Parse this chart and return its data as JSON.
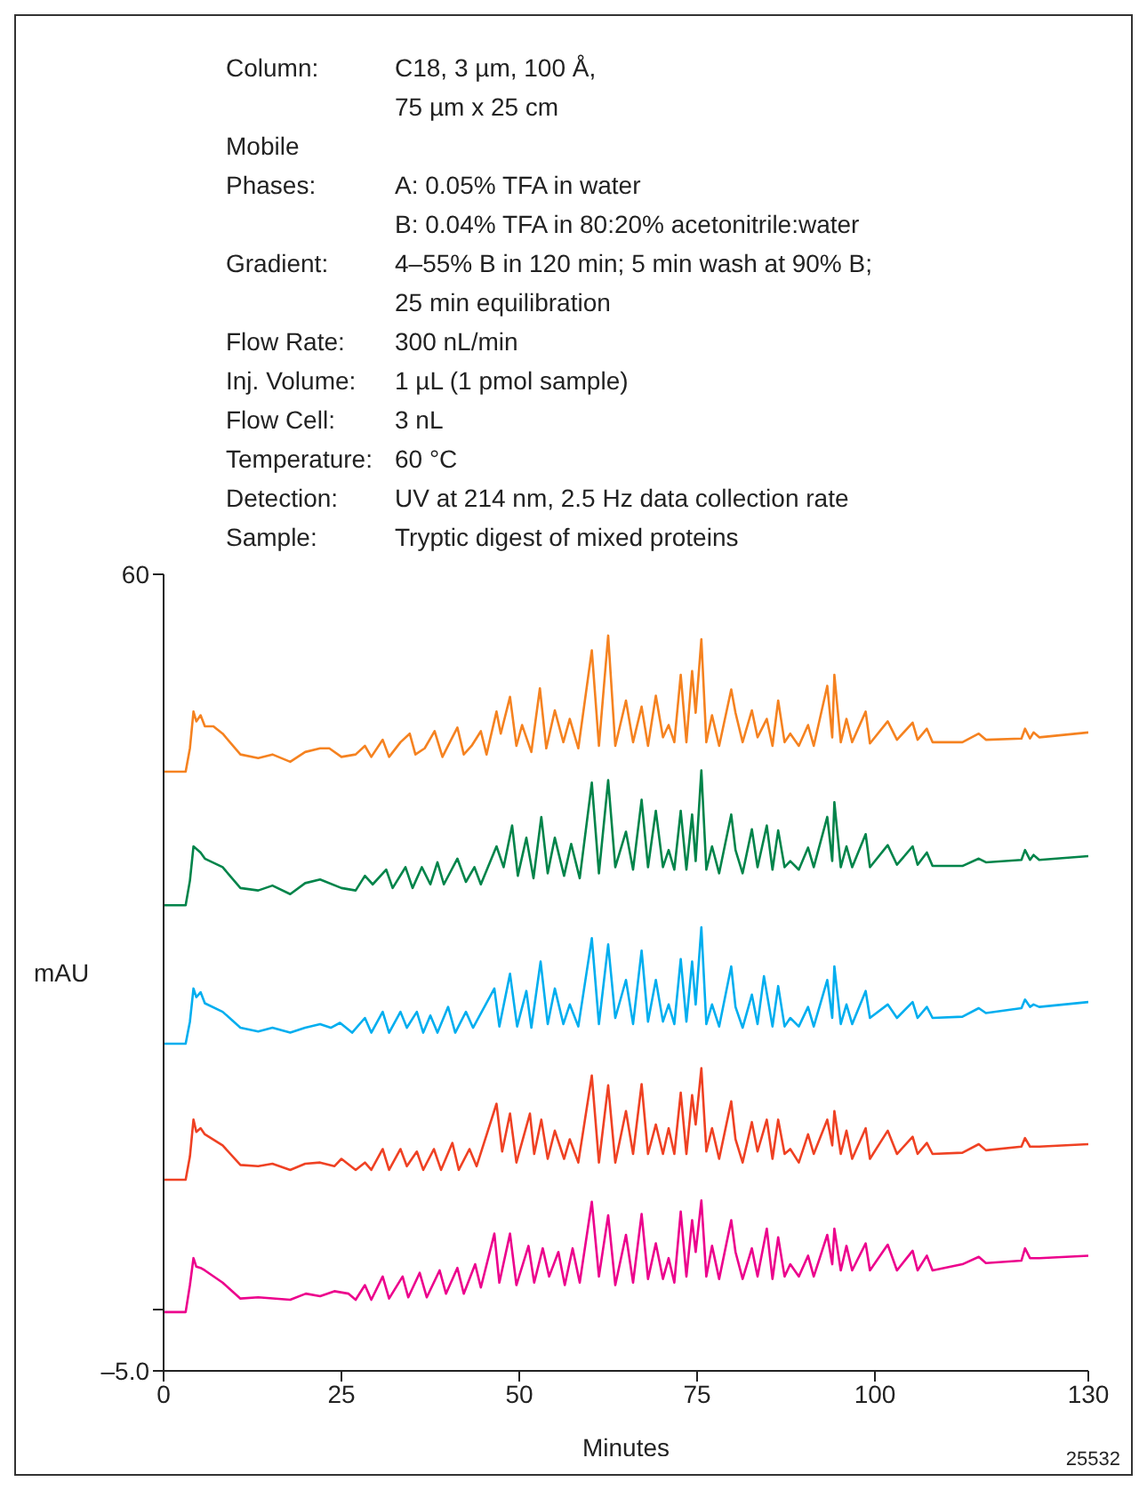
{
  "chart_data": {
    "type": "line",
    "xlabel": "Minutes",
    "ylabel": "mAU",
    "xlim": [
      0,
      130
    ],
    "xticks": [
      0,
      25,
      50,
      75,
      100,
      130
    ],
    "ylim": [
      -5,
      60
    ],
    "yticks": [
      60,
      {
        "value": 0,
        "label": null
      },
      {
        "value": -5,
        "label": "–5.0"
      }
    ],
    "annotations": [
      "Column:",
      "C18, 3 µm, 100 Å,\n75 µm x 25 cm",
      "Mobile\nPhases:",
      "\nA: 0.05% TFA in water\nB: 0.04% TFA in 80:20% acetonitrile:water",
      "Gradient:",
      "4–55% B in 120 min; 5 min wash at 90% B;\n25 min equilibration",
      "Flow Rate:",
      "300 nL/min",
      "Inj. Volume:",
      "1 µL (1 pmol sample)",
      "Flow Cell:",
      "3 nL",
      "Temperature:",
      "60 °C",
      "Detection:",
      "UV at 214 nm, 2.5 Hz data collection rate",
      "Sample:",
      "Tryptic digest of mixed proteins",
      "25532"
    ],
    "series": [
      {
        "color": "#f58220",
        "x": [
          0,
          3.1,
          3.7,
          4.2,
          4.6,
          5.2,
          5.8,
          7.0,
          8.3,
          10.8,
          13.3,
          15.3,
          17.8,
          19.9,
          22,
          23.3,
          25,
          27,
          28.3,
          29.2,
          30.8,
          31.7,
          33.3,
          34.6,
          35.4,
          36.7,
          38.1,
          39.2,
          41.3,
          42.2,
          43.3,
          44.6,
          45.4,
          46.8,
          47.4,
          48.7,
          49.6,
          50.4,
          51.7,
          52.9,
          53.8,
          55.0,
          56.2,
          57.1,
          58.3,
          60.2,
          61.2,
          62.5,
          63.5,
          65,
          66,
          67.2,
          68.1,
          69.2,
          70.2,
          71,
          71.8,
          72.7,
          73.5,
          74.3,
          74.8,
          75.6,
          76.3,
          77.1,
          78.1,
          79.8,
          80.4,
          81.4,
          82.7,
          83.5,
          84.8,
          85.6,
          86.4,
          87.3,
          88.1,
          89.3,
          90.6,
          91.4,
          93.3,
          94.0,
          94.3,
          95.2,
          96.0,
          96.8,
          98.7,
          99.3,
          101.8,
          103.1,
          105.3,
          106,
          107.3,
          108.1,
          112.3,
          114.6,
          115.6,
          120.6,
          121.1,
          121.8,
          122.3,
          123.1,
          130
        ],
        "values": [
          43.9,
          43.9,
          45.8,
          48.8,
          48.0,
          48.5,
          47.6,
          47.6,
          47.0,
          45.3,
          45.0,
          45.3,
          44.7,
          45.5,
          45.8,
          45.8,
          45.1,
          45.3,
          46.0,
          45.1,
          46.5,
          45.1,
          46.3,
          47.0,
          45.3,
          45.8,
          47.2,
          45.1,
          47.5,
          45.3,
          46.0,
          47.2,
          45.3,
          48.8,
          47.0,
          50.0,
          46.0,
          47.7,
          45.5,
          50.7,
          45.8,
          48.9,
          46.3,
          48.2,
          45.8,
          53.8,
          46.0,
          55.0,
          46.0,
          49.7,
          46.3,
          49.2,
          46.0,
          50.1,
          46.7,
          47.7,
          46.3,
          51.8,
          46.3,
          52.1,
          48.7,
          54.7,
          46.3,
          48.5,
          46.0,
          50.6,
          48.7,
          46.3,
          48.9,
          46.7,
          48.2,
          46.0,
          49.7,
          46.3,
          47.0,
          46.0,
          47.7,
          46.0,
          50.9,
          46.7,
          51.8,
          46.3,
          48.2,
          46.3,
          48.8,
          46.2,
          48.0,
          46.5,
          47.9,
          46.5,
          47.4,
          46.3,
          46.3,
          47.0,
          46.5,
          46.6,
          47.4,
          46.6,
          47.1,
          46.7,
          47.1
        ]
      },
      {
        "color": "#00844a",
        "x": [
          0,
          3.1,
          3.7,
          4.2,
          5.2,
          5.8,
          8.3,
          10.8,
          13.3,
          15.3,
          17.8,
          19.9,
          22,
          25,
          27,
          28.3,
          29.4,
          31.3,
          32.2,
          34,
          35,
          36.3,
          37.5,
          38.5,
          39.4,
          41.3,
          42.5,
          43.7,
          44.6,
          46.8,
          47.8,
          49,
          49.8,
          51,
          52,
          53.1,
          54,
          55,
          56.3,
          57.3,
          58.5,
          60.2,
          61.2,
          62.5,
          63.5,
          65,
          66,
          67.2,
          68.1,
          69.2,
          70.2,
          71,
          71.8,
          72.7,
          73.5,
          74.3,
          74.8,
          75.6,
          76.3,
          77.1,
          78.1,
          79.8,
          80.4,
          81.4,
          82.7,
          83.5,
          84.8,
          85.6,
          86.4,
          87.3,
          88.1,
          89.3,
          90.6,
          91.4,
          93.3,
          94,
          94.3,
          95.2,
          96,
          96.8,
          98.7,
          99.3,
          101.8,
          103.1,
          105.3,
          106,
          107.3,
          108.1,
          112.3,
          114.6,
          115.6,
          120.6,
          121.1,
          121.8,
          122.3,
          123.1,
          130
        ],
        "values": [
          33.0,
          33.0,
          35.0,
          37.8,
          37.3,
          36.8,
          36.1,
          34.4,
          34.2,
          34.6,
          33.9,
          34.8,
          35.1,
          34.4,
          34.2,
          35.4,
          34.7,
          35.9,
          34.4,
          36.1,
          34.4,
          36.1,
          34.7,
          36.5,
          34.7,
          36.8,
          34.9,
          36.1,
          34.7,
          37.8,
          36.1,
          39.5,
          35.4,
          38.5,
          35.2,
          40.2,
          35.6,
          38.5,
          35.4,
          38.0,
          35.2,
          43.0,
          35.6,
          43.2,
          36.1,
          39.0,
          35.9,
          41.6,
          36.1,
          40.7,
          36.1,
          37.5,
          35.9,
          40.7,
          35.9,
          40.4,
          36.6,
          44.0,
          35.9,
          37.8,
          35.6,
          40.4,
          37.5,
          35.6,
          39.2,
          36.1,
          39.5,
          35.9,
          39.1,
          36.1,
          36.6,
          35.9,
          37.7,
          36.1,
          40.2,
          36.6,
          41.4,
          36.1,
          37.8,
          36.1,
          38.8,
          36.1,
          37.9,
          36.3,
          37.8,
          36.3,
          37.3,
          36.2,
          36.2,
          36.8,
          36.5,
          36.7,
          37.5,
          36.7,
          37.1,
          36.7,
          37.0
        ]
      },
      {
        "color": "#00aeef",
        "x": [
          0,
          3.1,
          3.7,
          4.2,
          4.6,
          5.2,
          5.8,
          8.3,
          10.8,
          13.3,
          15.3,
          17.8,
          19.9,
          22,
          23.5,
          24.8,
          26.5,
          28.3,
          29.2,
          30.8,
          31.7,
          33.3,
          34.2,
          35.6,
          36.5,
          37.5,
          38.5,
          40,
          41,
          42.5,
          43.5,
          46.5,
          47.2,
          48.7,
          49.7,
          51,
          51.7,
          53,
          54,
          55,
          56.2,
          57.1,
          58.3,
          60.2,
          61.2,
          62.5,
          63.5,
          65,
          66,
          67.2,
          68.1,
          69.2,
          70.2,
          71,
          71.8,
          72.7,
          73.5,
          74.3,
          74.8,
          75.6,
          76.3,
          77.1,
          78.1,
          79.8,
          80.4,
          81.4,
          82.7,
          83.5,
          84.4,
          85.6,
          86.4,
          87.3,
          88.1,
          89.3,
          90.6,
          91.4,
          93.3,
          94,
          94.3,
          95.2,
          96,
          96.8,
          98.7,
          99.3,
          101.8,
          103.1,
          105.3,
          106,
          107.3,
          108.1,
          112.3,
          114.6,
          115.6,
          120.6,
          121.1,
          121.8,
          122.3,
          123.1,
          130
        ],
        "values": [
          21.7,
          21.7,
          23.5,
          26.2,
          25.5,
          25.9,
          25.0,
          24.3,
          23.0,
          22.7,
          23.0,
          22.6,
          23.0,
          23.3,
          23.0,
          23.4,
          22.6,
          23.8,
          22.6,
          24.3,
          22.6,
          24.3,
          23.0,
          24.3,
          22.6,
          24.0,
          22.6,
          24.7,
          22.6,
          24.3,
          23.0,
          26.2,
          23.1,
          27.4,
          23.1,
          26.0,
          23.0,
          28.4,
          23.3,
          26.2,
          23.3,
          24.9,
          23.1,
          30.3,
          23.3,
          29.8,
          23.8,
          26.9,
          23.3,
          29.3,
          23.5,
          26.9,
          23.5,
          24.9,
          23.3,
          28.6,
          23.5,
          28.4,
          24.9,
          31.2,
          23.3,
          24.9,
          23.1,
          28.0,
          24.7,
          23.0,
          25.7,
          23.3,
          27.2,
          23.1,
          26.4,
          23.1,
          23.8,
          23.1,
          24.7,
          23.1,
          26.9,
          23.8,
          28.0,
          23.3,
          24.9,
          23.3,
          26.0,
          23.8,
          24.9,
          23.8,
          25.1,
          23.8,
          24.7,
          23.8,
          23.9,
          24.6,
          24.2,
          24.6,
          25.3,
          24.7,
          24.9,
          24.7,
          25.1
        ]
      },
      {
        "color": "#ef4123",
        "x": [
          0,
          3.1,
          3.7,
          4.2,
          4.6,
          5.2,
          5.8,
          8.3,
          10.8,
          13.3,
          15.3,
          17.8,
          19.9,
          22,
          24,
          25,
          27,
          28.3,
          29.2,
          30.8,
          31.7,
          33.3,
          34.2,
          35.6,
          36.5,
          38,
          39,
          40.6,
          41.5,
          43,
          44,
          46.8,
          47.6,
          48.7,
          49.6,
          51.5,
          52.1,
          53.1,
          54,
          55,
          56.3,
          57.1,
          58.3,
          60.2,
          61.2,
          62.5,
          63.5,
          65,
          66,
          67.2,
          68.1,
          69.2,
          70.2,
          71,
          71.8,
          72.7,
          73.5,
          74.3,
          74.8,
          75.6,
          76.3,
          77.1,
          78.1,
          79.8,
          80.4,
          81.4,
          82.7,
          83.5,
          84.8,
          85.6,
          86.4,
          87.3,
          88.1,
          89.3,
          90.6,
          91.4,
          93.3,
          94,
          94.3,
          95.2,
          96,
          96.8,
          98.7,
          99.3,
          101.8,
          103.1,
          105.3,
          106,
          107.3,
          108.1,
          112.3,
          114.6,
          115.6,
          120.6,
          121.1,
          121.8,
          123.1,
          130
        ],
        "values": [
          10.6,
          10.6,
          12.5,
          15.5,
          14.5,
          14.8,
          14.3,
          13.4,
          11.8,
          11.7,
          11.9,
          11.4,
          11.9,
          12.0,
          11.7,
          12.3,
          11.4,
          12.0,
          11.4,
          13.1,
          11.4,
          13.1,
          11.7,
          12.9,
          11.4,
          13.1,
          11.4,
          13.6,
          11.4,
          13.1,
          11.7,
          16.8,
          12.9,
          16.0,
          12.0,
          16.0,
          12.7,
          15.5,
          12.3,
          14.6,
          12.3,
          13.9,
          12.0,
          19.1,
          12.0,
          18.3,
          12.0,
          16.2,
          12.7,
          18.4,
          12.7,
          15.1,
          12.7,
          14.8,
          12.7,
          17.7,
          12.7,
          17.5,
          15.1,
          19.7,
          12.9,
          14.8,
          12.3,
          17.0,
          13.9,
          12.0,
          15.3,
          12.9,
          15.5,
          12.3,
          15.5,
          12.7,
          13.1,
          12.0,
          14.3,
          12.7,
          15.5,
          13.4,
          16.2,
          12.7,
          14.6,
          12.3,
          14.8,
          12.3,
          14.6,
          12.7,
          14.1,
          12.7,
          13.6,
          12.7,
          12.8,
          13.5,
          13.0,
          13.3,
          14.0,
          13.3,
          13.3,
          13.5
        ]
      },
      {
        "color": "#ec008c",
        "x": [
          0,
          3.1,
          3.7,
          4.2,
          4.6,
          5.2,
          5.8,
          8.3,
          10.8,
          13.3,
          17.8,
          20,
          22,
          24,
          26,
          27,
          28.3,
          29.2,
          30.8,
          31.7,
          33.6,
          34.4,
          36,
          37,
          38.8,
          39.7,
          41.3,
          42.2,
          43.8,
          44.6,
          46.5,
          47.2,
          48.7,
          49.6,
          51.3,
          52.1,
          53.3,
          54.2,
          55.5,
          56.4,
          57.5,
          58.5,
          60.2,
          61.2,
          62.5,
          63.5,
          65,
          66,
          67.2,
          68.1,
          69.2,
          70.2,
          71,
          71.8,
          72.7,
          73.5,
          74.3,
          74.8,
          75.6,
          76.3,
          77.1,
          78.1,
          79.8,
          80.4,
          81.4,
          82.7,
          83.5,
          84.8,
          85.6,
          86.4,
          87.3,
          88.1,
          89.3,
          90.6,
          91.4,
          93.3,
          94,
          94.3,
          95.2,
          96,
          96.8,
          98.7,
          99.3,
          101.8,
          103.1,
          105.3,
          106,
          107.3,
          108.1,
          112.3,
          114.6,
          115.6,
          120.6,
          121.1,
          121.8,
          123.1,
          130
        ],
        "values": [
          -0.2,
          -0.2,
          2.0,
          4.2,
          3.5,
          3.4,
          3.2,
          2.2,
          0.9,
          1.0,
          0.8,
          1.3,
          1.1,
          1.5,
          1.3,
          0.8,
          2.0,
          0.8,
          2.7,
          0.9,
          2.7,
          1.0,
          3.0,
          1.0,
          3.2,
          1.3,
          3.4,
          1.3,
          3.7,
          1.8,
          6.2,
          2.2,
          6.2,
          2.0,
          5.2,
          2.2,
          5.0,
          2.7,
          4.7,
          2.0,
          5.0,
          2.2,
          8.8,
          2.7,
          7.7,
          2.0,
          6.1,
          2.2,
          7.8,
          2.5,
          5.4,
          2.5,
          4.2,
          2.2,
          8.0,
          2.7,
          7.3,
          4.7,
          8.9,
          2.7,
          5.2,
          2.5,
          7.3,
          4.7,
          2.5,
          5.0,
          2.7,
          6.6,
          2.5,
          5.9,
          2.7,
          3.7,
          2.7,
          4.4,
          2.7,
          6.1,
          3.7,
          6.6,
          3.2,
          5.2,
          3.2,
          5.4,
          3.2,
          5.3,
          3.2,
          4.8,
          3.2,
          4.4,
          3.2,
          3.7,
          4.3,
          3.8,
          4.0,
          5.0,
          4.2,
          4.2,
          4.4
        ]
      }
    ]
  }
}
